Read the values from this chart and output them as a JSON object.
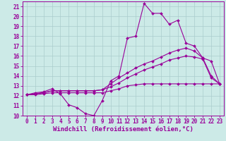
{
  "background_color": "#cceae7",
  "grid_color": "#aacccc",
  "line_color": "#990099",
  "marker_color": "#990099",
  "xlabel": "Windchill (Refroidissement éolien,°C)",
  "xlim": [
    -0.5,
    23.5
  ],
  "ylim": [
    10,
    21.5
  ],
  "xticks": [
    0,
    1,
    2,
    3,
    4,
    5,
    6,
    7,
    8,
    9,
    10,
    11,
    12,
    13,
    14,
    15,
    16,
    17,
    18,
    19,
    20,
    21,
    22,
    23
  ],
  "yticks": [
    10,
    11,
    12,
    13,
    14,
    15,
    16,
    17,
    18,
    19,
    20,
    21
  ],
  "curves": [
    {
      "x": [
        0,
        1,
        2,
        3,
        4,
        5,
        6,
        7,
        8,
        9,
        10,
        11,
        12,
        13,
        14,
        15,
        16,
        17,
        18,
        19,
        20,
        21,
        22,
        23
      ],
      "y": [
        12.1,
        12.3,
        12.4,
        12.7,
        12.2,
        11.1,
        10.8,
        10.2,
        10.0,
        11.5,
        13.5,
        14.0,
        17.8,
        18.0,
        21.3,
        20.3,
        20.3,
        19.2,
        19.6,
        17.3,
        17.0,
        15.8,
        15.5,
        13.2
      ]
    },
    {
      "x": [
        0,
        1,
        2,
        3,
        4,
        5,
        6,
        7,
        8,
        9,
        10,
        11,
        12,
        13,
        14,
        15,
        16,
        17,
        18,
        19,
        20,
        21,
        22,
        23
      ],
      "y": [
        12.1,
        12.2,
        12.3,
        12.5,
        12.5,
        12.5,
        12.5,
        12.5,
        12.5,
        12.6,
        13.2,
        13.8,
        14.3,
        14.8,
        15.2,
        15.5,
        15.9,
        16.3,
        16.6,
        16.8,
        16.5,
        15.8,
        14.0,
        13.2
      ]
    },
    {
      "x": [
        0,
        1,
        2,
        3,
        4,
        5,
        6,
        7,
        8,
        9,
        10,
        11,
        12,
        13,
        14,
        15,
        16,
        17,
        18,
        19,
        20,
        21,
        22,
        23
      ],
      "y": [
        12.1,
        12.2,
        12.3,
        12.5,
        12.5,
        12.5,
        12.5,
        12.5,
        12.5,
        12.6,
        12.9,
        13.3,
        13.8,
        14.2,
        14.6,
        14.9,
        15.2,
        15.6,
        15.8,
        16.0,
        15.9,
        15.7,
        13.8,
        13.2
      ]
    },
    {
      "x": [
        0,
        1,
        2,
        3,
        4,
        5,
        6,
        7,
        8,
        9,
        10,
        11,
        12,
        13,
        14,
        15,
        16,
        17,
        18,
        19,
        20,
        21,
        22,
        23
      ],
      "y": [
        12.1,
        12.1,
        12.2,
        12.3,
        12.3,
        12.3,
        12.3,
        12.3,
        12.3,
        12.3,
        12.5,
        12.7,
        13.0,
        13.1,
        13.2,
        13.2,
        13.2,
        13.2,
        13.2,
        13.2,
        13.2,
        13.2,
        13.2,
        13.2
      ]
    }
  ],
  "tick_fontsize": 5.5,
  "label_fontsize": 6.5
}
